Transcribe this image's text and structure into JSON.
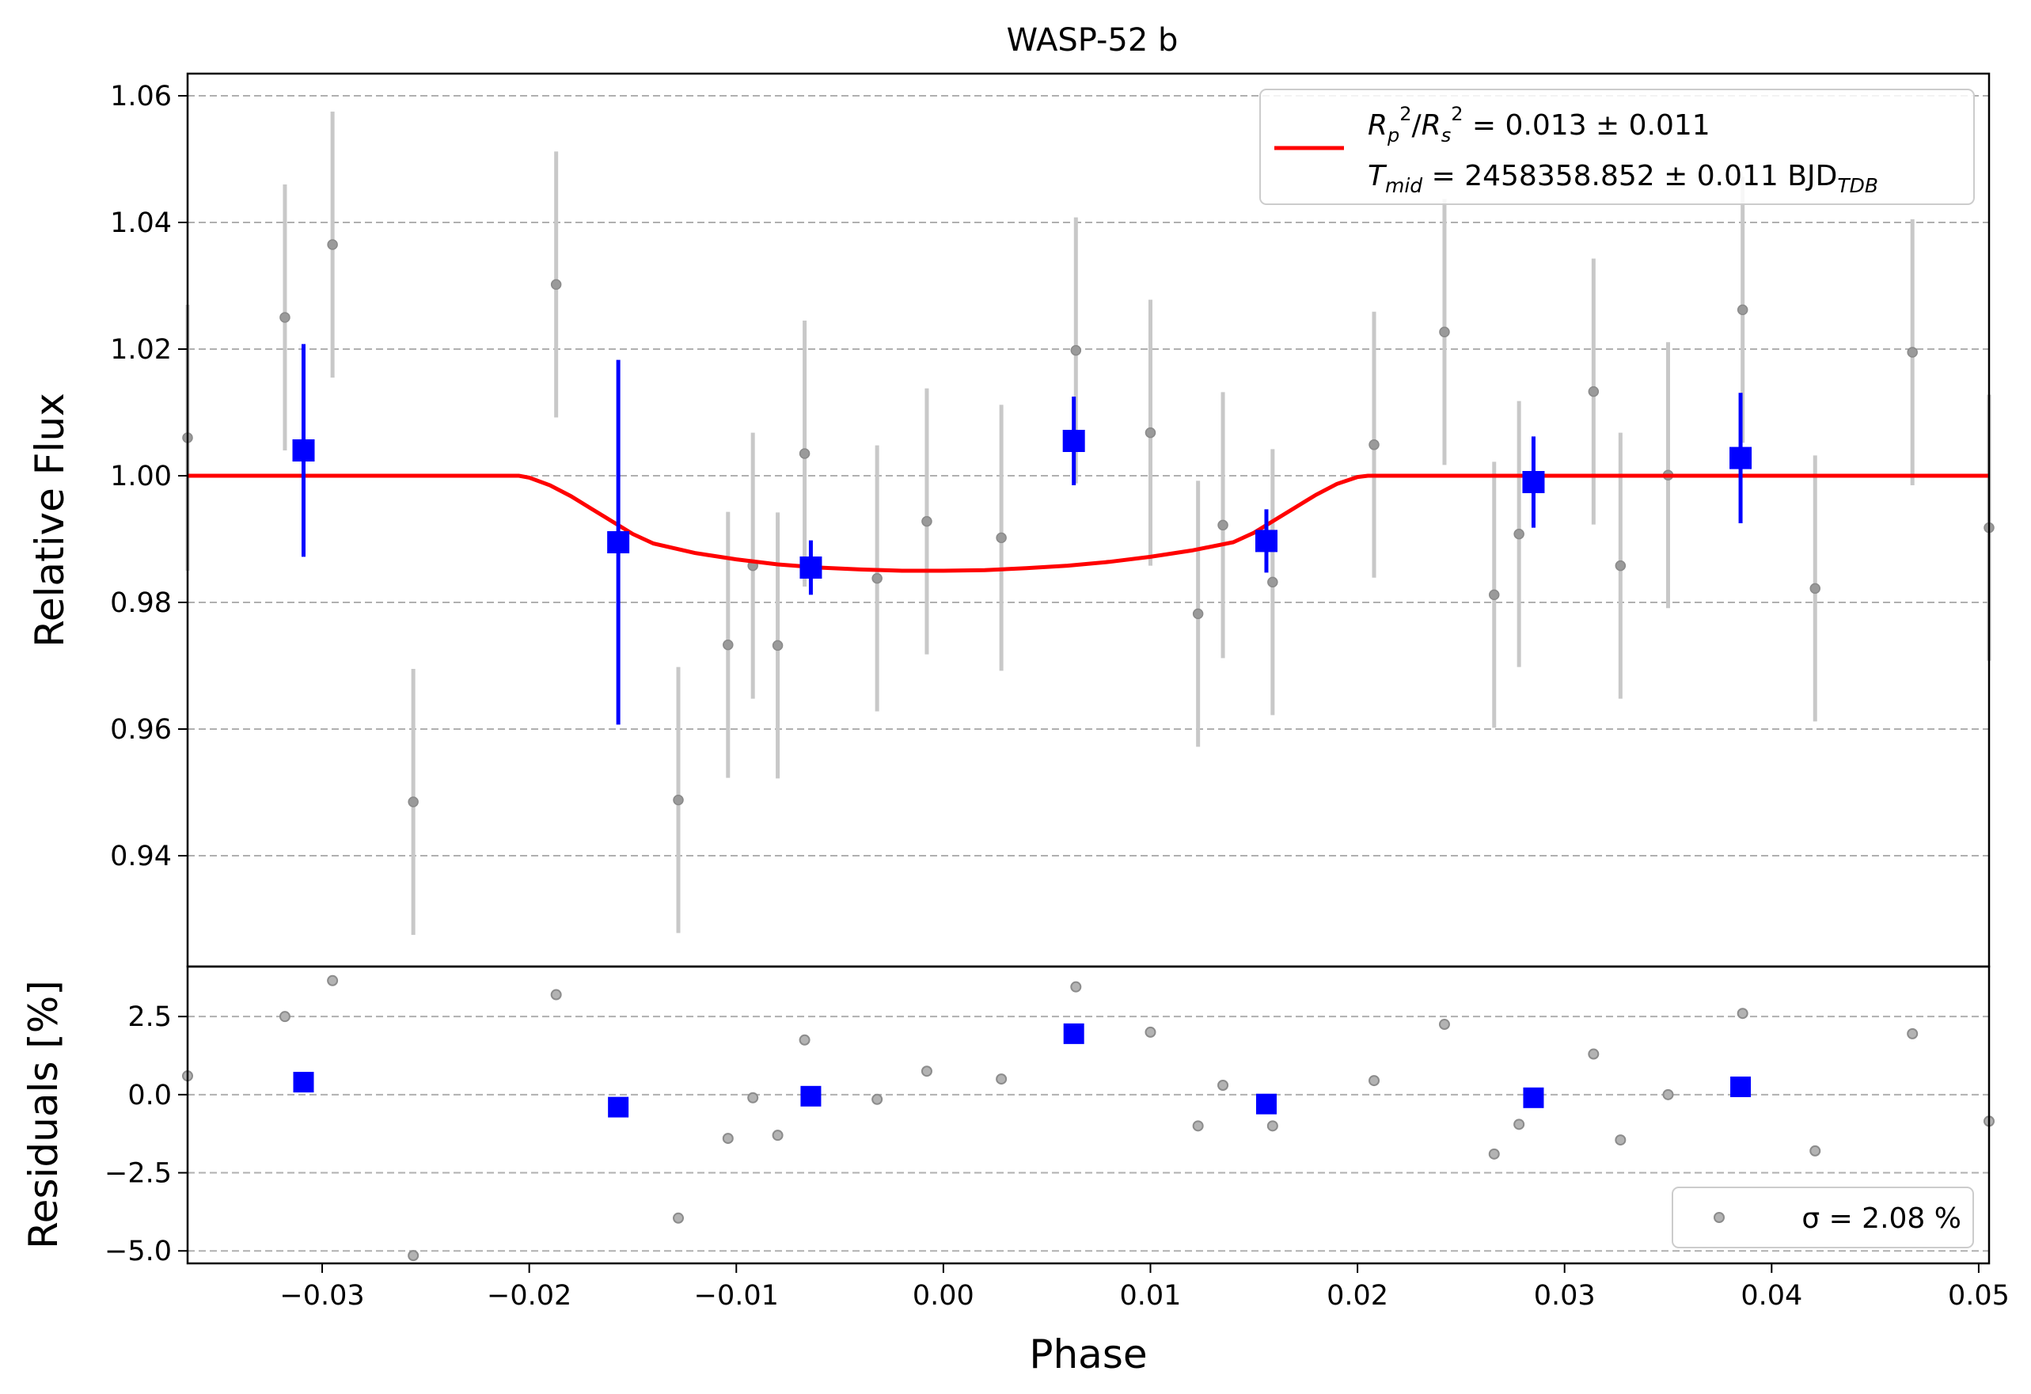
{
  "chart_data": [
    {
      "panel": "main",
      "type": "scatter",
      "title": "WASP-52 b",
      "xlabel": "",
      "ylabel": "Relative Flux",
      "xlim": [
        -0.0365,
        0.0505
      ],
      "ylim": [
        0.9225,
        1.0635
      ],
      "grid": "y-dashed",
      "x_ticks": [
        -0.03,
        -0.02,
        -0.01,
        0.0,
        0.01,
        0.02,
        0.03,
        0.04,
        0.05
      ],
      "y_ticks": [
        0.94,
        0.96,
        0.98,
        1.0,
        1.02,
        1.04,
        1.06
      ],
      "y_tick_labels": [
        "0.94",
        "0.96",
        "0.98",
        "1.00",
        "1.02",
        "1.04",
        "1.06"
      ],
      "legend": {
        "placement": "upper right",
        "entries": [
          {
            "label": "R_p^2/R_s^2 = 0.013 ± 0.011",
            "color": "#ff0000"
          },
          {
            "label": "T_mid = 2458358.852 ± 0.011 BJD_TDB",
            "color": "#ff0000"
          }
        ]
      },
      "series": [
        {
          "style": "gray-points-with-errorbars",
          "color": "#808080",
          "points": [
            {
              "x": -0.0365,
              "y": 1.006,
              "err": 0.021
            },
            {
              "x": -0.0318,
              "y": 1.025,
              "err": 0.021
            },
            {
              "x": -0.0295,
              "y": 1.0365,
              "err": 0.021
            },
            {
              "x": -0.0256,
              "y": 0.9485,
              "err": 0.021
            },
            {
              "x": -0.0187,
              "y": 1.0302,
              "err": 0.021
            },
            {
              "x": -0.0128,
              "y": 0.9488,
              "err": 0.021
            },
            {
              "x": -0.0104,
              "y": 0.9733,
              "err": 0.021
            },
            {
              "x": -0.0092,
              "y": 0.9858,
              "err": 0.021
            },
            {
              "x": -0.008,
              "y": 0.9732,
              "err": 0.021
            },
            {
              "x": -0.0067,
              "y": 1.0035,
              "err": 0.021
            },
            {
              "x": -0.0032,
              "y": 0.9838,
              "err": 0.021
            },
            {
              "x": -0.0008,
              "y": 0.9928,
              "err": 0.021
            },
            {
              "x": 0.0028,
              "y": 0.9902,
              "err": 0.021
            },
            {
              "x": 0.0064,
              "y": 1.0198,
              "err": 0.021
            },
            {
              "x": 0.01,
              "y": 1.0068,
              "err": 0.021
            },
            {
              "x": 0.0123,
              "y": 0.9782,
              "err": 0.021
            },
            {
              "x": 0.0135,
              "y": 0.9922,
              "err": 0.021
            },
            {
              "x": 0.0159,
              "y": 0.9832,
              "err": 0.021
            },
            {
              "x": 0.0208,
              "y": 1.0049,
              "err": 0.021
            },
            {
              "x": 0.0242,
              "y": 1.0227,
              "err": 0.021
            },
            {
              "x": 0.0266,
              "y": 0.9812,
              "err": 0.021
            },
            {
              "x": 0.0278,
              "y": 0.9908,
              "err": 0.021
            },
            {
              "x": 0.0314,
              "y": 1.0133,
              "err": 0.021
            },
            {
              "x": 0.0327,
              "y": 0.9858,
              "err": 0.021
            },
            {
              "x": 0.035,
              "y": 1.0001,
              "err": 0.021
            },
            {
              "x": 0.0386,
              "y": 1.0262,
              "err": 0.021
            },
            {
              "x": 0.0421,
              "y": 0.9822,
              "err": 0.021
            },
            {
              "x": 0.0468,
              "y": 1.0195,
              "err": 0.021
            },
            {
              "x": 0.0505,
              "y": 0.9918,
              "err": 0.021
            }
          ]
        },
        {
          "style": "blue-binned-squares-with-errorbars",
          "color": "#0000ff",
          "points": [
            {
              "x": -0.0309,
              "y": 1.004,
              "err": 0.0168
            },
            {
              "x": -0.0157,
              "y": 0.9895,
              "err": 0.0288
            },
            {
              "x": -0.0064,
              "y": 0.9855,
              "err": 0.0043
            },
            {
              "x": 0.0063,
              "y": 1.0055,
              "err": 0.007
            },
            {
              "x": 0.0156,
              "y": 0.9897,
              "err": 0.005
            },
            {
              "x": 0.0285,
              "y": 0.999,
              "err": 0.0072
            },
            {
              "x": 0.0385,
              "y": 1.0028,
              "err": 0.0103
            }
          ]
        },
        {
          "style": "model-line",
          "color": "#ff0000",
          "x": [
            -0.0365,
            -0.0205,
            -0.02,
            -0.019,
            -0.018,
            -0.017,
            -0.016,
            -0.015,
            -0.014,
            -0.012,
            -0.01,
            -0.008,
            -0.006,
            -0.004,
            -0.002,
            0.0,
            0.002,
            0.004,
            0.006,
            0.008,
            0.01,
            0.012,
            0.014,
            0.015,
            0.016,
            0.017,
            0.018,
            0.019,
            0.02,
            0.0205,
            0.0505
          ],
          "y": [
            1.0,
            1.0,
            0.9997,
            0.9985,
            0.9968,
            0.9948,
            0.9928,
            0.9908,
            0.9893,
            0.9878,
            0.9868,
            0.986,
            0.9855,
            0.9852,
            0.985,
            0.985,
            0.9851,
            0.9854,
            0.9858,
            0.9864,
            0.9872,
            0.9882,
            0.9895,
            0.991,
            0.993,
            0.995,
            0.997,
            0.9987,
            0.9998,
            1.0,
            1.0
          ]
        }
      ]
    },
    {
      "panel": "residuals",
      "type": "scatter",
      "xlabel": "Phase",
      "ylabel": "Residuals [%]",
      "xlim": [
        -0.0365,
        0.0505
      ],
      "ylim": [
        -5.4,
        4.1
      ],
      "grid": "y-dashed",
      "x_ticks": [
        -0.03,
        -0.02,
        -0.01,
        0.0,
        0.01,
        0.02,
        0.03,
        0.04,
        0.05
      ],
      "x_tick_labels": [
        "−0.03",
        "−0.02",
        "−0.01",
        "0.00",
        "0.01",
        "0.02",
        "0.03",
        "0.04",
        "0.05"
      ],
      "y_ticks": [
        -5.0,
        -2.5,
        0.0,
        2.5
      ],
      "y_tick_labels": [
        "−5.0",
        "−2.5",
        "0.0",
        "2.5"
      ],
      "legend": {
        "placement": "lower right",
        "entries": [
          {
            "label": "σ = 2.08 %",
            "color": "#808080"
          }
        ]
      },
      "series": [
        {
          "style": "gray-points",
          "color": "#808080",
          "points": [
            {
              "x": -0.0365,
              "y": 0.6
            },
            {
              "x": -0.0318,
              "y": 2.5
            },
            {
              "x": -0.0295,
              "y": 3.65
            },
            {
              "x": -0.0256,
              "y": -5.15
            },
            {
              "x": -0.0187,
              "y": 3.2
            },
            {
              "x": -0.0128,
              "y": -3.95
            },
            {
              "x": -0.0104,
              "y": -1.4
            },
            {
              "x": -0.0092,
              "y": -0.1
            },
            {
              "x": -0.008,
              "y": -1.3
            },
            {
              "x": -0.0067,
              "y": 1.75
            },
            {
              "x": -0.0032,
              "y": -0.15
            },
            {
              "x": -0.0008,
              "y": 0.75
            },
            {
              "x": 0.0028,
              "y": 0.5
            },
            {
              "x": 0.0064,
              "y": 3.45
            },
            {
              "x": 0.01,
              "y": 2.0
            },
            {
              "x": 0.0123,
              "y": -1.0
            },
            {
              "x": 0.0135,
              "y": 0.3
            },
            {
              "x": 0.0159,
              "y": -1.0
            },
            {
              "x": 0.0208,
              "y": 0.45
            },
            {
              "x": 0.0242,
              "y": 2.25
            },
            {
              "x": 0.0266,
              "y": -1.9
            },
            {
              "x": 0.0278,
              "y": -0.95
            },
            {
              "x": 0.0314,
              "y": 1.3
            },
            {
              "x": 0.0327,
              "y": -1.45
            },
            {
              "x": 0.035,
              "y": 0.0
            },
            {
              "x": 0.0386,
              "y": 2.6
            },
            {
              "x": 0.0421,
              "y": -1.8
            },
            {
              "x": 0.0468,
              "y": 1.95
            },
            {
              "x": 0.0505,
              "y": -0.85
            }
          ]
        },
        {
          "style": "blue-binned-squares",
          "color": "#0000ff",
          "points": [
            {
              "x": -0.0309,
              "y": 0.4
            },
            {
              "x": -0.0157,
              "y": -0.4
            },
            {
              "x": -0.0064,
              "y": -0.05
            },
            {
              "x": 0.0063,
              "y": 1.95
            },
            {
              "x": 0.0156,
              "y": -0.3
            },
            {
              "x": 0.0285,
              "y": -0.1
            },
            {
              "x": 0.0385,
              "y": 0.25
            }
          ]
        }
      ]
    }
  ]
}
